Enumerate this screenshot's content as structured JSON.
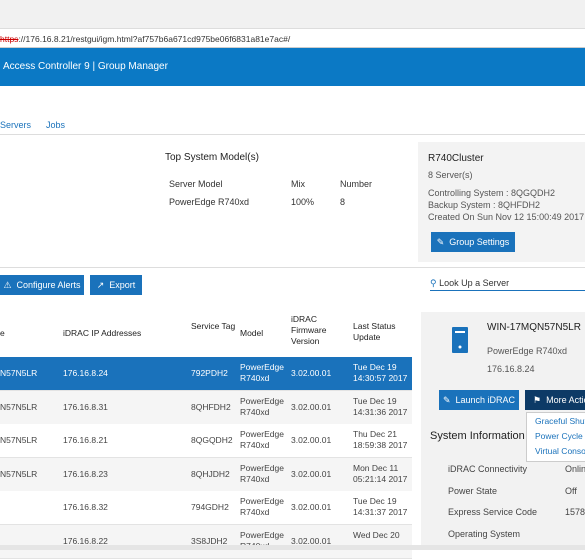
{
  "browser": {
    "url_scheme": "https",
    "url_rest": "://176.16.8.21/restgui/igm.html?af757b6a671cd975be06f6831a81e7ac#/"
  },
  "header": {
    "product": "Access Controller 9",
    "section": "Group Manager"
  },
  "tabs": [
    "Servers",
    "Jobs"
  ],
  "models": {
    "title": "Top System Model(s)",
    "columns": [
      "Server Model",
      "Mix",
      "Number"
    ],
    "rows": [
      [
        "PowerEdge R740xd",
        "100%",
        "8"
      ]
    ]
  },
  "group": {
    "name": "R740Cluster",
    "count": "8 Server(s)",
    "controlling": "Controlling System : 8QGQDH2",
    "backup": "Backup System : 8QHFDH2",
    "created": "Created On Sun Nov 12 15:00:49 2017",
    "button": "Group Settings"
  },
  "toolbar": {
    "alerts": "Configure Alerts",
    "export": "Export",
    "search": "Look Up a Server"
  },
  "table": {
    "columns": [
      "e",
      "iDRAC IP Addresses",
      "Service Tag",
      "Model",
      "iDRAC Firmware Version",
      "Last Status Update"
    ],
    "rows": [
      [
        "N57N5LR",
        "176.16.8.24",
        "792PDH2",
        "PowerEdge R740xd",
        "3.02.00.01",
        "Tue Dec 19 14:30:57 2017"
      ],
      [
        "N57N5LR",
        "176.16.8.31",
        "8QHFDH2",
        "PowerEdge R740xd",
        "3.02.00.01",
        "Tue Dec 19 14:31:36 2017"
      ],
      [
        "N57N5LR",
        "176.16.8.21",
        "8QGQDH2",
        "PowerEdge R740xd",
        "3.02.00.01",
        "Thu Dec 21 18:59:38 2017"
      ],
      [
        "N57N5LR",
        "176.16.8.23",
        "8QHJDH2",
        "PowerEdge R740xd",
        "3.02.00.01",
        "Mon Dec 11 05:21:14 2017"
      ],
      [
        null,
        "176.16.8.32",
        "794GDH2",
        "PowerEdge R740xd",
        "3.02.00.01",
        "Tue Dec 19 14:31:37 2017"
      ],
      [
        null,
        "176.16.8.22",
        "3S8JDH2",
        "PowerEdge R740xd",
        "3.02.00.01",
        "Wed Dec 20"
      ]
    ]
  },
  "detail": {
    "name": "WIN-17MQN57N5LR",
    "model": "PowerEdge R740xd",
    "ip": "176.16.8.24",
    "launch": "Launch iDRAC",
    "more": "More Actio",
    "menu": [
      "Graceful Shut",
      "Power Cycle S",
      "Virtual Conso"
    ],
    "info_title": "System Information",
    "info": [
      [
        "iDRAC Connectivity",
        "Onlin"
      ],
      [
        "Power State",
        "Off"
      ],
      [
        "Express Service Code",
        "1578"
      ],
      [
        "Operating System",
        null
      ]
    ]
  }
}
